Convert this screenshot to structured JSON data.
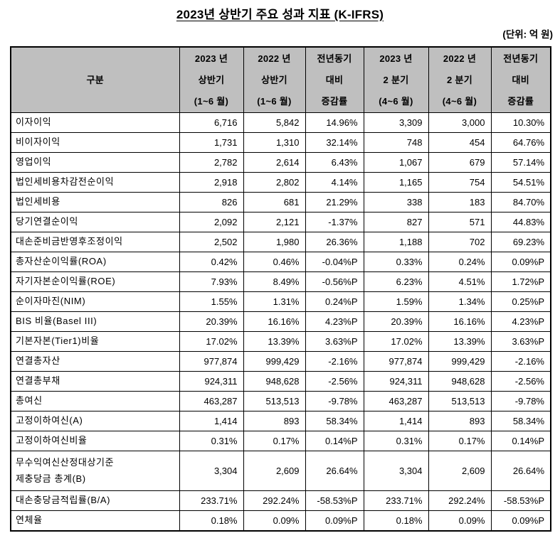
{
  "page": {
    "title": "2023년 상반기 주요 성과 지표 (K-IFRS)",
    "unit_label": "(단위: 억 원)"
  },
  "colors": {
    "header_bg": "#BFBFBF",
    "border": "#000000",
    "text": "#000000",
    "page_bg": "#FFFFFF"
  },
  "table": {
    "headers": [
      "구분",
      "2023 년\n상반기\n(1~6 월)",
      "2022 년\n상반기\n(1~6 월)",
      "전년동기\n대비\n증감률",
      "2023 년\n2 분기\n(4~6 월)",
      "2022 년\n2 분기\n(4~6 월)",
      "전년동기\n대비\n증감률"
    ],
    "rows": [
      {
        "label": "이자이익",
        "values": [
          "6,716",
          "5,842",
          "14.96%",
          "3,309",
          "3,000",
          "10.30%"
        ]
      },
      {
        "label": "비이자이익",
        "values": [
          "1,731",
          "1,310",
          "32.14%",
          "748",
          "454",
          "64.76%"
        ]
      },
      {
        "label": "영업이익",
        "values": [
          "2,782",
          "2,614",
          "6.43%",
          "1,067",
          "679",
          "57.14%"
        ]
      },
      {
        "label": "법인세비용차감전순이익",
        "values": [
          "2,918",
          "2,802",
          "4.14%",
          "1,165",
          "754",
          "54.51%"
        ]
      },
      {
        "label": "법인세비용",
        "values": [
          "826",
          "681",
          "21.29%",
          "338",
          "183",
          "84.70%"
        ]
      },
      {
        "label": "당기연결순이익",
        "values": [
          "2,092",
          "2,121",
          "-1.37%",
          "827",
          "571",
          "44.83%"
        ]
      },
      {
        "label": "대손준비금반영후조정이익",
        "values": [
          "2,502",
          "1,980",
          "26.36%",
          "1,188",
          "702",
          "69.23%"
        ]
      },
      {
        "label": "총자산순이익률(ROA)",
        "values": [
          "0.42%",
          "0.46%",
          "-0.04%P",
          "0.33%",
          "0.24%",
          "0.09%P"
        ]
      },
      {
        "label": "자기자본순이익률(ROE)",
        "values": [
          "7.93%",
          "8.49%",
          "-0.56%P",
          "6.23%",
          "4.51%",
          "1.72%P"
        ]
      },
      {
        "label": "순이자마진(NIM)",
        "values": [
          "1.55%",
          "1.31%",
          "0.24%P",
          "1.59%",
          "1.34%",
          "0.25%P"
        ]
      },
      {
        "label": "BIS 비율(Basel III)",
        "values": [
          "20.39%",
          "16.16%",
          "4.23%P",
          "20.39%",
          "16.16%",
          "4.23%P"
        ]
      },
      {
        "label": "기본자본(Tier1)비율",
        "values": [
          "17.02%",
          "13.39%",
          "3.63%P",
          "17.02%",
          "13.39%",
          "3.63%P"
        ]
      },
      {
        "label": "연결총자산",
        "values": [
          "977,874",
          "999,429",
          "-2.16%",
          "977,874",
          "999,429",
          "-2.16%"
        ]
      },
      {
        "label": "연결총부채",
        "values": [
          "924,311",
          "948,628",
          "-2.56%",
          "924,311",
          "948,628",
          "-2.56%"
        ]
      },
      {
        "label": "총여신",
        "values": [
          "463,287",
          "513,513",
          "-9.78%",
          "463,287",
          "513,513",
          "-9.78%"
        ]
      },
      {
        "label": "고정이하여신(A)",
        "values": [
          "1,414",
          "893",
          "58.34%",
          "1,414",
          "893",
          "58.34%"
        ]
      },
      {
        "label": "고정이하여신비율",
        "values": [
          "0.31%",
          "0.17%",
          "0.14%P",
          "0.31%",
          "0.17%",
          "0.14%P"
        ]
      },
      {
        "label": "무수익여신산정대상기준\n제충당금 총계(B)",
        "tall": true,
        "values": [
          "3,304",
          "2,609",
          "26.64%",
          "3,304",
          "2,609",
          "26.64%"
        ]
      },
      {
        "label": "대손충당금적립률(B/A)",
        "values": [
          "233.71%",
          "292.24%",
          "-58.53%P",
          "233.71%",
          "292.24%",
          "-58.53%P"
        ]
      },
      {
        "label": "연체율",
        "values": [
          "0.18%",
          "0.09%",
          "0.09%P",
          "0.18%",
          "0.09%",
          "0.09%P"
        ]
      }
    ]
  }
}
